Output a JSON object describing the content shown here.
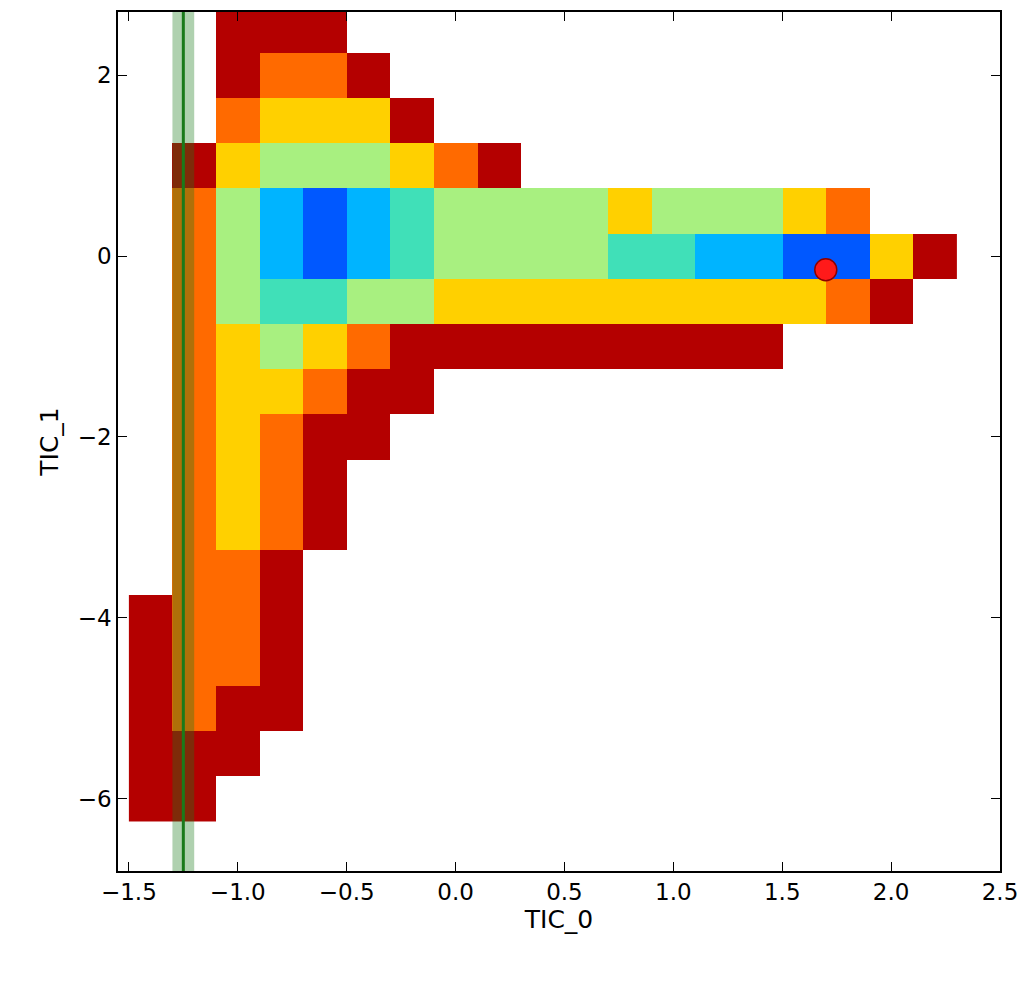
{
  "chart_data": {
    "type": "heatmap",
    "x_label": "TIC_0",
    "y_label": "TIC_1",
    "grid": false,
    "xlim": [
      -1.55,
      2.5
    ],
    "ylim": [
      -6.8,
      2.7
    ],
    "xticks": [
      {
        "value": -1.5,
        "label": "−1.5"
      },
      {
        "value": -1.0,
        "label": "−1.0"
      },
      {
        "value": -0.5,
        "label": "−0.5"
      },
      {
        "value": 0,
        "label": "0.0"
      },
      {
        "value": 0.5,
        "label": "0.5"
      },
      {
        "value": 1,
        "label": "1.0"
      },
      {
        "value": 1.5,
        "label": "1.5"
      },
      {
        "value": 2,
        "label": "2.0"
      },
      {
        "value": 2.5,
        "label": "2.5"
      }
    ],
    "yticks": [
      -6,
      -4,
      -2,
      0,
      2
    ],
    "colors": [
      "#0000c8",
      "#0058ff",
      "#00b4ff",
      "#40e0b8",
      "#a8f080",
      "#ffd000",
      "#ff6a00",
      "#b40000"
    ],
    "zlim": [
      0,
      7
    ],
    "x": [
      -1.4,
      -1.2,
      -1.0,
      -0.8,
      -0.6,
      -0.4,
      -0.2,
      0.0,
      0.2,
      0.4,
      0.6,
      0.8,
      1.0,
      1.2,
      1.4,
      1.6,
      1.8,
      2.0,
      2.2
    ],
    "y": [
      2.5,
      2.0,
      1.5,
      1.0,
      0.5,
      0.0,
      -0.5,
      -1.0,
      -1.5,
      -2.0,
      -2.5,
      -3.0,
      -3.5,
      -4.0,
      -4.5,
      -5.0,
      -5.5,
      -6.0
    ],
    "z": [
      [
        null,
        null,
        7,
        7,
        7,
        null,
        null,
        null,
        null,
        null,
        null,
        null,
        null,
        null,
        null,
        null,
        null,
        null,
        null
      ],
      [
        null,
        null,
        7,
        6,
        6,
        7,
        null,
        null,
        null,
        null,
        null,
        null,
        null,
        null,
        null,
        null,
        null,
        null,
        null
      ],
      [
        null,
        null,
        6,
        5,
        5,
        5,
        7,
        null,
        null,
        null,
        null,
        null,
        null,
        null,
        null,
        null,
        null,
        null,
        null
      ],
      [
        null,
        7,
        5,
        4,
        4,
        4,
        5,
        6,
        7,
        null,
        null,
        null,
        null,
        null,
        null,
        null,
        null,
        null,
        null
      ],
      [
        null,
        6,
        4,
        2,
        1,
        2,
        3,
        4,
        4,
        4,
        4,
        5,
        4,
        4,
        4,
        5,
        6,
        null,
        null
      ],
      [
        null,
        6,
        4,
        2,
        1,
        2,
        3,
        4,
        4,
        4,
        4,
        3,
        3,
        2,
        2,
        1,
        1,
        5,
        7
      ],
      [
        null,
        6,
        4,
        3,
        3,
        4,
        4,
        5,
        5,
        5,
        5,
        5,
        5,
        5,
        5,
        5,
        6,
        7,
        null
      ],
      [
        null,
        6,
        5,
        4,
        5,
        6,
        7,
        7,
        7,
        7,
        7,
        7,
        7,
        7,
        7,
        null,
        null,
        null,
        null
      ],
      [
        null,
        6,
        5,
        5,
        6,
        7,
        7,
        null,
        null,
        null,
        null,
        null,
        null,
        null,
        null,
        null,
        null,
        null,
        null
      ],
      [
        null,
        6,
        5,
        6,
        7,
        7,
        null,
        null,
        null,
        null,
        null,
        null,
        null,
        null,
        null,
        null,
        null,
        null,
        null
      ],
      [
        null,
        6,
        5,
        6,
        7,
        null,
        null,
        null,
        null,
        null,
        null,
        null,
        null,
        null,
        null,
        null,
        null,
        null,
        null
      ],
      [
        null,
        6,
        5,
        6,
        7,
        null,
        null,
        null,
        null,
        null,
        null,
        null,
        null,
        null,
        null,
        null,
        null,
        null,
        null
      ],
      [
        null,
        6,
        6,
        7,
        null,
        null,
        null,
        null,
        null,
        null,
        null,
        null,
        null,
        null,
        null,
        null,
        null,
        null,
        null
      ],
      [
        7,
        6,
        6,
        7,
        null,
        null,
        null,
        null,
        null,
        null,
        null,
        null,
        null,
        null,
        null,
        null,
        null,
        null,
        null
      ],
      [
        7,
        6,
        6,
        7,
        null,
        null,
        null,
        null,
        null,
        null,
        null,
        null,
        null,
        null,
        null,
        null,
        null,
        null,
        null
      ],
      [
        7,
        6,
        7,
        7,
        null,
        null,
        null,
        null,
        null,
        null,
        null,
        null,
        null,
        null,
        null,
        null,
        null,
        null,
        null
      ],
      [
        7,
        7,
        7,
        null,
        null,
        null,
        null,
        null,
        null,
        null,
        null,
        null,
        null,
        null,
        null,
        null,
        null,
        null,
        null
      ],
      [
        7,
        7,
        null,
        null,
        null,
        null,
        null,
        null,
        null,
        null,
        null,
        null,
        null,
        null,
        null,
        null,
        null,
        null,
        null
      ]
    ],
    "points": {
      "x": [
        1.7
      ],
      "y": [
        -0.15
      ],
      "color": "#ff1a1a",
      "marker": "circle"
    },
    "reference_line": {
      "x": -1.25,
      "band": [
        -1.3,
        -1.2
      ],
      "color": "#1a7a1a",
      "line_style": "solid"
    }
  }
}
